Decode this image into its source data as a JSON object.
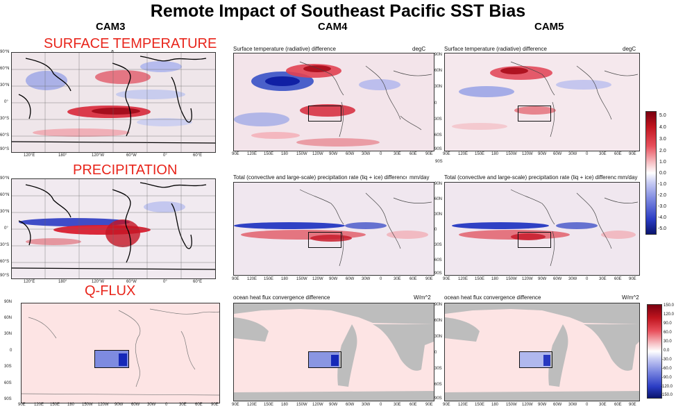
{
  "title": "Remote Impact of  Southeast Pacific SST Bias",
  "columns": [
    "CAM3",
    "CAM4",
    "CAM5"
  ],
  "rows": [
    "SURFACE TEMPERATURE",
    "PRECIPITATION",
    "Q-FLUX"
  ],
  "row_note": "a",
  "panel_titles": {
    "temp": "Surface temperature (radiative) difference",
    "precip": "Total (convective and large-scale) precipitation rate (liq + ice) difference",
    "qflux": "ocean heat flux convergence difference"
  },
  "panel_units": {
    "temp": "degC",
    "precip": "mm/day",
    "qflux": "W/m^2"
  },
  "cam3_lat_ticks": [
    "90°N",
    "60°N",
    "30°N",
    "0°",
    "30°S",
    "60°S",
    "90°S"
  ],
  "cam3_lon_ticks": [
    "120°E",
    "180°",
    "120°W",
    "60°W",
    "0°",
    "60°E"
  ],
  "lat_ticks": [
    "90N",
    "60N",
    "30N",
    "0",
    "30S",
    "60S",
    "90S"
  ],
  "lon_ticks": [
    "90E",
    "120E",
    "150E",
    "180",
    "150W",
    "120W",
    "90W",
    "60W",
    "30W",
    "0",
    "30E",
    "60E",
    "90E"
  ],
  "colorbar_temp": [
    "5.0",
    "4.0",
    "3.0",
    "2.0",
    "1.0",
    "0.0",
    "-1.0",
    "-2.0",
    "-3.0",
    "-4.0",
    "-5.0"
  ],
  "colorbar_qflux": [
    "150.0",
    "120.0",
    "90.0",
    "60.0",
    "30.0",
    "0.0",
    "-30.0",
    "-60.0",
    "-90.0",
    "-120.0",
    "-150.0"
  ],
  "colors": {
    "row_heading": "#e8251b",
    "warm": "#c0141e",
    "cold": "#1a2fbf",
    "land": "#bdbdbd",
    "ocean_pale": "#fde4e4"
  }
}
